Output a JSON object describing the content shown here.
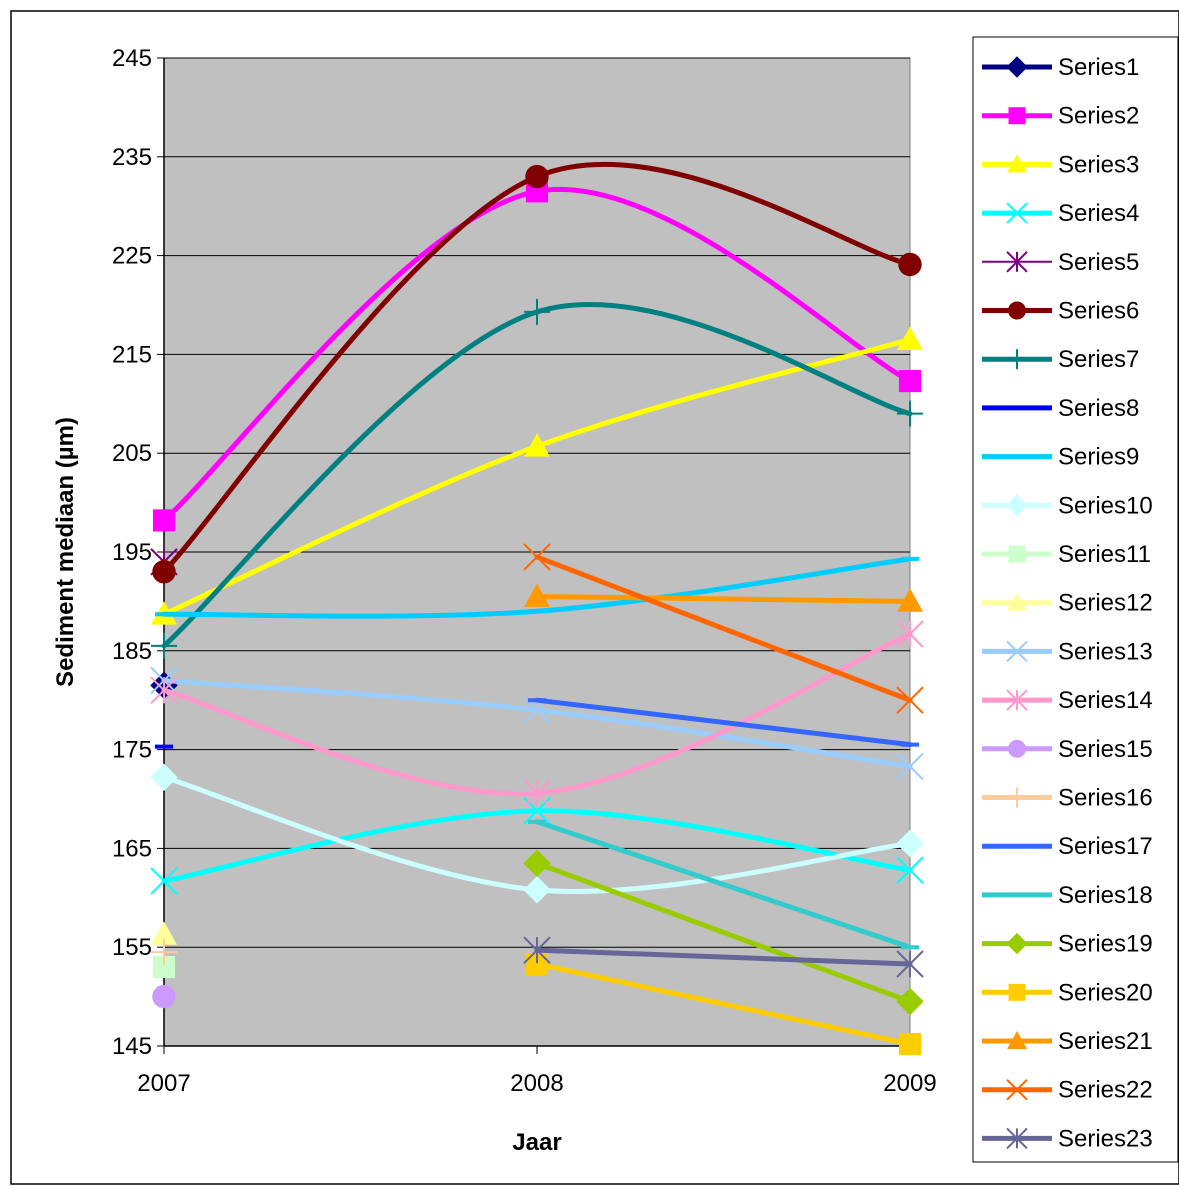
{
  "chart_data": {
    "type": "line",
    "xlabel": "Jaar",
    "ylabel": "Sediment mediaan (µm)",
    "x": [
      "2007",
      "2008",
      "2009"
    ],
    "ylim": [
      145,
      245
    ],
    "yticks": [
      145,
      155,
      165,
      175,
      185,
      195,
      205,
      215,
      225,
      235,
      245
    ],
    "grid": "horizontal",
    "plot_background": "#c0c0c0",
    "legend_position": "right",
    "series": [
      {
        "name": "Series1",
        "values": [
          181.5,
          null,
          null
        ],
        "color": "#000080",
        "marker": "diamond",
        "smooth": false
      },
      {
        "name": "Series2",
        "values": [
          198.2,
          231.5,
          212.3
        ],
        "color": "#ff00ff",
        "marker": "square",
        "smooth": true
      },
      {
        "name": "Series3",
        "values": [
          188.7,
          205.7,
          216.5
        ],
        "color": "#ffff00",
        "marker": "triangle",
        "smooth": true
      },
      {
        "name": "Series4",
        "values": [
          161.7,
          168.8,
          162.8
        ],
        "color": "#00ffff",
        "marker": "x",
        "smooth": true
      },
      {
        "name": "Series5",
        "values": [
          194.0,
          null,
          null
        ],
        "color": "#800080",
        "marker": "asterisk",
        "smooth": false
      },
      {
        "name": "Series6",
        "values": [
          193.0,
          233.0,
          224.1
        ],
        "color": "#800000",
        "marker": "circle",
        "smooth": true
      },
      {
        "name": "Series7",
        "values": [
          185.5,
          219.3,
          209.0
        ],
        "color": "#008080",
        "marker": "plus",
        "smooth": true
      },
      {
        "name": "Series8",
        "values": [
          175.3,
          null,
          null
        ],
        "color": "#0000ff",
        "marker": "dash",
        "smooth": false
      },
      {
        "name": "Series9",
        "values": [
          188.7,
          189.0,
          194.3
        ],
        "color": "#00ccff",
        "marker": "dash",
        "smooth": true
      },
      {
        "name": "Series10",
        "values": [
          172.2,
          160.8,
          165.5
        ],
        "color": "#ccffff",
        "marker": "diamond",
        "smooth": true
      },
      {
        "name": "Series11",
        "values": [
          153.0,
          null,
          null
        ],
        "color": "#ccffcc",
        "marker": "square",
        "smooth": false
      },
      {
        "name": "Series12",
        "values": [
          156.3,
          null,
          null
        ],
        "color": "#ffff99",
        "marker": "triangle",
        "smooth": false
      },
      {
        "name": "Series13",
        "values": [
          182.0,
          179.0,
          173.3
        ],
        "color": "#99ccff",
        "marker": "x",
        "smooth": true
      },
      {
        "name": "Series14",
        "values": [
          181.0,
          170.6,
          186.7
        ],
        "color": "#ff99cc",
        "marker": "asterisk",
        "smooth": true
      },
      {
        "name": "Series15",
        "values": [
          150.0,
          null,
          null
        ],
        "color": "#cc99ff",
        "marker": "circle",
        "smooth": false
      },
      {
        "name": "Series16",
        "values": [
          154.5,
          null,
          null
        ],
        "color": "#ffcc99",
        "marker": "plus",
        "smooth": false
      },
      {
        "name": "Series17",
        "values": [
          null,
          180.0,
          175.5
        ],
        "color": "#3366ff",
        "marker": "dash",
        "smooth": false
      },
      {
        "name": "Series18",
        "values": [
          null,
          167.7,
          155.0
        ],
        "color": "#33cccc",
        "marker": "dash",
        "smooth": false
      },
      {
        "name": "Series19",
        "values": [
          null,
          163.5,
          149.5
        ],
        "color": "#99cc00",
        "marker": "diamond",
        "smooth": false
      },
      {
        "name": "Series20",
        "values": [
          null,
          153.3,
          145.2
        ],
        "color": "#ffcc00",
        "marker": "square",
        "smooth": false
      },
      {
        "name": "Series21",
        "values": [
          null,
          190.5,
          190.0
        ],
        "color": "#ff9900",
        "marker": "triangle",
        "smooth": false
      },
      {
        "name": "Series22",
        "values": [
          null,
          194.5,
          180.0
        ],
        "color": "#ff6600",
        "marker": "x",
        "smooth": false
      },
      {
        "name": "Series23",
        "values": [
          null,
          154.7,
          153.3
        ],
        "color": "#666699",
        "marker": "asterisk",
        "smooth": false
      }
    ]
  }
}
